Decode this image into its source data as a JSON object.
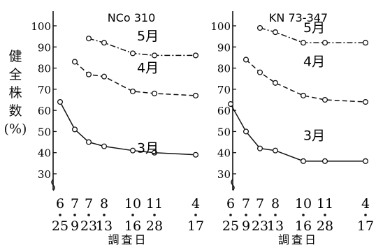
{
  "ylabel_chars": [
    "健",
    "全",
    "株",
    "数",
    "(%)"
  ],
  "chart_data": [
    {
      "type": "line",
      "title": "NCo 310",
      "xlabel": "調査日",
      "ylabel": "健全株数(%)",
      "ylim": [
        30,
        100
      ],
      "yticks": [
        30,
        40,
        50,
        60,
        70,
        80,
        90,
        100
      ],
      "x_tick_months": [
        "6",
        "7",
        "7",
        "8",
        "10",
        "11",
        "4"
      ],
      "x_tick_days": [
        "25",
        "9",
        "23",
        "13",
        "16",
        "28",
        "17"
      ],
      "grid": false,
      "series": [
        {
          "name": "5月",
          "style": "dash-dot",
          "x": [
            "7/23",
            "8/13",
            "10/16",
            "11/28",
            "4/17"
          ],
          "values": [
            94,
            92,
            87,
            86,
            86
          ]
        },
        {
          "name": "4月",
          "style": "dashed",
          "x": [
            "7/9",
            "7/23",
            "8/13",
            "10/16",
            "11/28",
            "4/17"
          ],
          "values": [
            83,
            77,
            76,
            69,
            68,
            67
          ]
        },
        {
          "name": "3月",
          "style": "solid",
          "x": [
            "6/25",
            "7/9",
            "7/23",
            "8/13",
            "10/16",
            "11/28",
            "4/17"
          ],
          "values": [
            64,
            51,
            45,
            43,
            41,
            40,
            39
          ]
        }
      ]
    },
    {
      "type": "line",
      "title": "KN 73-347",
      "xlabel": "調査日",
      "ylim": [
        30,
        100
      ],
      "yticks": [
        30,
        40,
        50,
        60,
        70,
        80,
        90,
        100
      ],
      "x_tick_months": [
        "6",
        "7",
        "7",
        "8",
        "10",
        "11",
        "4"
      ],
      "x_tick_days": [
        "25",
        "9",
        "23",
        "13",
        "16",
        "28",
        "17"
      ],
      "grid": false,
      "series": [
        {
          "name": "5月",
          "style": "dash-dot",
          "x": [
            "7/23",
            "8/13",
            "10/16",
            "11/28",
            "4/17"
          ],
          "values": [
            99,
            97,
            92,
            92,
            92
          ]
        },
        {
          "name": "4月",
          "style": "dashed",
          "x": [
            "7/9",
            "7/23",
            "8/13",
            "10/16",
            "11/28",
            "4/17"
          ],
          "values": [
            84,
            78,
            73,
            67,
            65,
            64
          ]
        },
        {
          "name": "3月",
          "style": "solid",
          "x": [
            "6/25",
            "7/9",
            "7/23",
            "8/13",
            "10/16",
            "11/28",
            "4/17"
          ],
          "values": [
            63,
            50,
            42,
            41,
            36,
            36,
            36
          ]
        }
      ]
    }
  ]
}
